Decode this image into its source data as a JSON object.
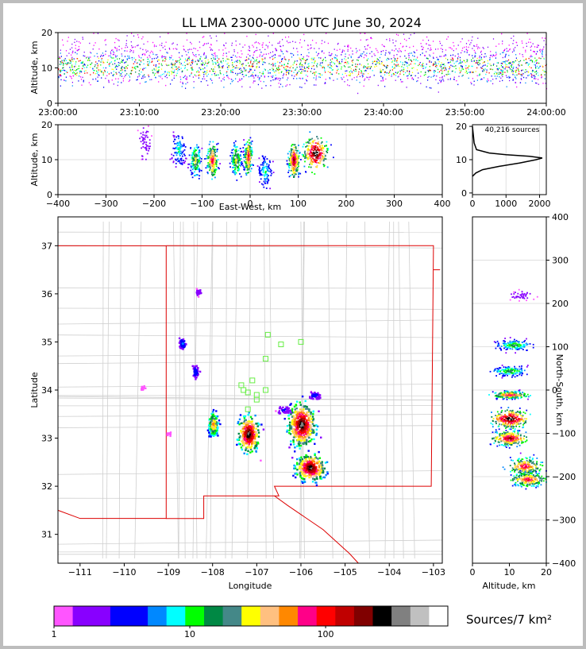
{
  "chart_data": {
    "type": "heatmap",
    "title": "LL LMA 2300-0000 UTC June 30, 2024",
    "source_count": "40,216 sources",
    "colorbar_label": "Sources/7 km²",
    "time_panel": {
      "ylabel": "Altitude, km",
      "x_ticks": [
        "23:00:00",
        "23:10:00",
        "23:20:00",
        "23:30:00",
        "23:40:00",
        "23:50:00",
        "24:00:00"
      ],
      "y_ticks": [
        "0",
        "10",
        "20"
      ],
      "xlim_minutes": [
        0,
        60
      ],
      "ylim": [
        0,
        20
      ]
    },
    "ew_alt_panel": {
      "xlabel": "East-West, km",
      "ylabel": "Altitude, km",
      "x_ticks": [
        "−400",
        "−300",
        "−200",
        "−100",
        "0",
        "100",
        "200",
        "300",
        "400"
      ],
      "y_ticks": [
        "0",
        "10",
        "20"
      ],
      "xlim": [
        -400,
        400
      ],
      "ylim": [
        0,
        20
      ],
      "clusters": [
        {
          "x": -220,
          "alt": 15,
          "w": 20,
          "density": 0.15
        },
        {
          "x": -150,
          "alt": 13,
          "w": 25,
          "density": 0.4
        },
        {
          "x": -115,
          "alt": 10,
          "w": 20,
          "density": 0.6
        },
        {
          "x": -80,
          "alt": 10,
          "w": 20,
          "density": 0.8
        },
        {
          "x": -30,
          "alt": 10,
          "w": 20,
          "density": 0.6
        },
        {
          "x": -5,
          "alt": 11,
          "w": 15,
          "density": 0.8
        },
        {
          "x": 30,
          "alt": 7,
          "w": 25,
          "density": 0.4
        },
        {
          "x": 90,
          "alt": 10,
          "w": 20,
          "density": 0.9
        },
        {
          "x": 135,
          "alt": 12,
          "w": 45,
          "density": 1.0
        }
      ]
    },
    "histogram_panel": {
      "x_ticks": [
        "0",
        "1000",
        "2000"
      ],
      "y_ticks": [
        "0",
        "10",
        "20"
      ],
      "xlim": [
        0,
        2200
      ],
      "ylim": [
        -0.5,
        20.5
      ],
      "profile": [
        [
          5,
          0
        ],
        [
          6,
          100
        ],
        [
          7,
          300
        ],
        [
          8,
          800
        ],
        [
          9,
          1400
        ],
        [
          10,
          1900
        ],
        [
          10.5,
          2080
        ],
        [
          11,
          1700
        ],
        [
          11.5,
          1000
        ],
        [
          12,
          500
        ],
        [
          13,
          120
        ],
        [
          15,
          50
        ],
        [
          17,
          30
        ],
        [
          19,
          10
        ],
        [
          20,
          0
        ]
      ]
    },
    "map_panel": {
      "xlabel": "Longitude",
      "ylabel": "Latitude",
      "x_ticks": [
        "−111",
        "−110",
        "−109",
        "−108",
        "−107",
        "−106",
        "−105",
        "−104",
        "−103"
      ],
      "y_ticks": [
        "31",
        "32",
        "33",
        "34",
        "35",
        "36",
        "37"
      ],
      "xlim": [
        -111.5,
        -102.8
      ],
      "ylim": [
        30.4,
        37.6
      ],
      "stations": [
        [
          -107.3,
          34.0
        ],
        [
          -107.1,
          34.2
        ],
        [
          -107.0,
          33.9
        ],
        [
          -106.8,
          34.65
        ],
        [
          -106.75,
          35.15
        ],
        [
          -106.45,
          34.95
        ],
        [
          -106.0,
          35.0
        ],
        [
          -107.2,
          33.6
        ],
        [
          -107.35,
          34.1
        ],
        [
          -107.2,
          33.95
        ],
        [
          -107.0,
          33.8
        ],
        [
          -106.8,
          34.0
        ]
      ],
      "storms": [
        {
          "lon": -108.7,
          "lat": 34.98,
          "sx": 0.05,
          "sy": 0.08,
          "n": 60
        },
        {
          "lon": -108.35,
          "lat": 36.05,
          "sx": 0.05,
          "sy": 0.05,
          "n": 25
        },
        {
          "lon": -108.4,
          "lat": 34.4,
          "sx": 0.05,
          "sy": 0.1,
          "n": 50
        },
        {
          "lon": -108.0,
          "lat": 33.3,
          "sx": 0.08,
          "sy": 0.18,
          "n": 140
        },
        {
          "lon": -107.2,
          "lat": 33.1,
          "sx": 0.16,
          "sy": 0.25,
          "n": 260
        },
        {
          "lon": -106.0,
          "lat": 33.3,
          "sx": 0.2,
          "sy": 0.3,
          "n": 420
        },
        {
          "lon": -105.8,
          "lat": 32.4,
          "sx": 0.22,
          "sy": 0.18,
          "n": 330
        },
        {
          "lon": -105.7,
          "lat": 33.9,
          "sx": 0.08,
          "sy": 0.05,
          "n": 50
        },
        {
          "lon": -106.4,
          "lat": 33.6,
          "sx": 0.1,
          "sy": 0.05,
          "n": 40
        },
        {
          "lon": -109.6,
          "lat": 34.05,
          "sx": 0.04,
          "sy": 0.04,
          "n": 12
        },
        {
          "lon": -109.0,
          "lat": 33.1,
          "sx": 0.03,
          "sy": 0.04,
          "n": 10
        }
      ]
    },
    "ns_alt_panel": {
      "xlabel": "Altitude, km",
      "ylabel": "North-South, km",
      "x_ticks": [
        "0",
        "10",
        "20"
      ],
      "y_ticks": [
        "−400",
        "−300",
        "−200",
        "−100",
        "0",
        "100",
        "200",
        "300",
        "400"
      ],
      "xlim": [
        0,
        20
      ],
      "ylim": [
        -400,
        400
      ],
      "clusters": [
        {
          "y": 105,
          "alt": 11,
          "h": 15,
          "density": 0.5
        },
        {
          "y": 45,
          "alt": 10,
          "h": 15,
          "density": 0.5
        },
        {
          "y": -10,
          "alt": 10,
          "h": 10,
          "density": 0.8
        },
        {
          "y": -65,
          "alt": 10,
          "h": 25,
          "density": 1.0
        },
        {
          "y": -110,
          "alt": 10,
          "h": 20,
          "density": 0.9
        },
        {
          "y": -175,
          "alt": 14,
          "h": 25,
          "density": 0.8
        },
        {
          "y": -205,
          "alt": 15,
          "h": 20,
          "density": 0.8
        },
        {
          "y": 220,
          "alt": 13,
          "h": 15,
          "density": 0.1
        }
      ]
    },
    "colorbar": {
      "colors": [
        "#ff55ff",
        "#8800ff",
        "#8800ff",
        "#0000ff",
        "#0000ff",
        "#0088ff",
        "#00ffff",
        "#00ff00",
        "#008844",
        "#448888",
        "#ffff00",
        "#ffc080",
        "#ff8800",
        "#ff0088",
        "#ff0000",
        "#c00000",
        "#800000",
        "#000000",
        "#808080",
        "#c0c0c0",
        "#ffffff"
      ],
      "tick_labels": [
        "1",
        "10",
        "100"
      ]
    }
  }
}
